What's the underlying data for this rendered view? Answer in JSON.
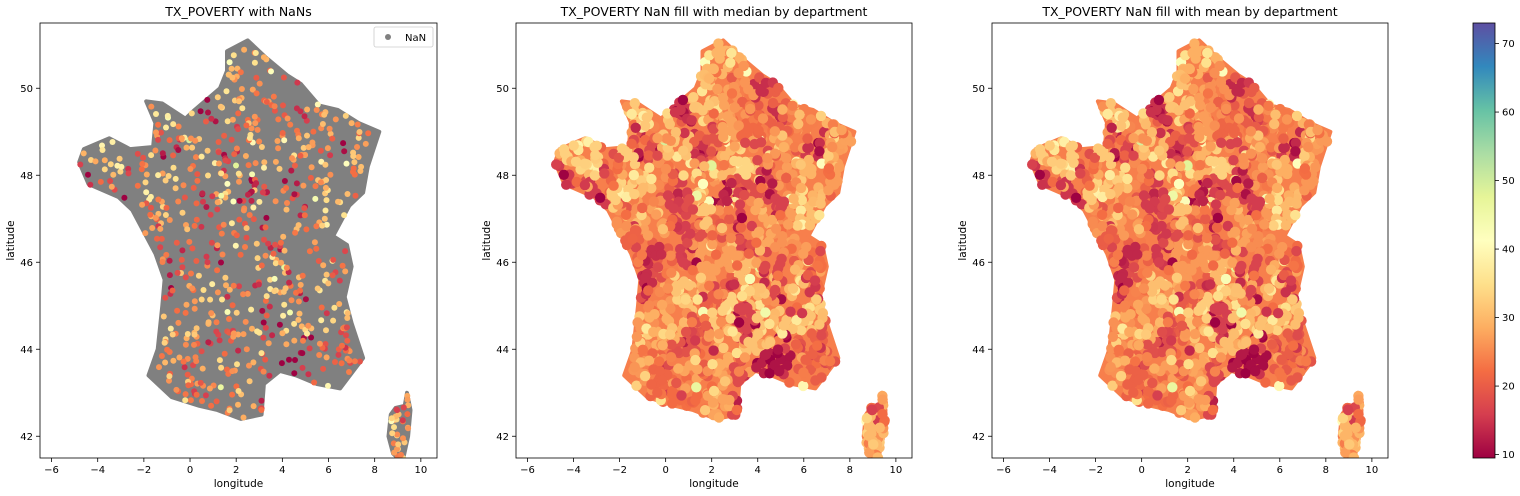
{
  "chart_data": [
    {
      "type": "scatter",
      "title": "TX_POVERTY with NaNs",
      "xlabel": "longitude",
      "ylabel": "latitude",
      "xlim": [
        -6.5,
        10.7
      ],
      "ylim": [
        41.5,
        51.5
      ],
      "xticks": [
        -6,
        -4,
        -2,
        0,
        2,
        4,
        6,
        8,
        10
      ],
      "yticks": [
        42,
        44,
        46,
        48,
        50
      ],
      "nan_color": "#808080",
      "legend": {
        "label": "NaN",
        "location": "top-right"
      },
      "fill": "none"
    },
    {
      "type": "scatter",
      "title": "TX_POVERTY NaN fill with median by department",
      "xlabel": "longitude",
      "ylabel": "latitude",
      "xlim": [
        -6.5,
        10.7
      ],
      "ylim": [
        41.5,
        51.5
      ],
      "xticks": [
        -6,
        -4,
        -2,
        0,
        2,
        4,
        6,
        8,
        10
      ],
      "yticks": [
        42,
        44,
        46,
        48,
        50
      ],
      "fill": "median"
    },
    {
      "type": "scatter",
      "title": "TX_POVERTY NaN fill with mean by department",
      "xlabel": "longitude",
      "ylabel": "latitude",
      "xlim": [
        -6.5,
        10.7
      ],
      "ylim": [
        41.5,
        51.5
      ],
      "xticks": [
        -6,
        -4,
        -2,
        0,
        2,
        4,
        6,
        8,
        10
      ],
      "yticks": [
        42,
        44,
        46,
        48,
        50
      ],
      "fill": "mean"
    }
  ],
  "colorbar": {
    "cmap": "Spectral",
    "range": [
      9.5,
      73
    ],
    "ticks": [
      10,
      20,
      30,
      40,
      50,
      60,
      70
    ]
  },
  "outline_lonlat": [
    [
      2.5,
      51.1
    ],
    [
      3.3,
      50.7
    ],
    [
      4.2,
      50.3
    ],
    [
      4.8,
      50.1
    ],
    [
      5.6,
      49.6
    ],
    [
      6.4,
      49.5
    ],
    [
      7.3,
      49.2
    ],
    [
      8.2,
      49.0
    ],
    [
      7.7,
      48.2
    ],
    [
      7.5,
      47.6
    ],
    [
      6.9,
      47.3
    ],
    [
      6.2,
      46.6
    ],
    [
      6.8,
      46.4
    ],
    [
      7.0,
      45.9
    ],
    [
      6.7,
      45.2
    ],
    [
      7.0,
      44.6
    ],
    [
      7.5,
      43.8
    ],
    [
      6.5,
      43.1
    ],
    [
      5.5,
      43.2
    ],
    [
      4.6,
      43.4
    ],
    [
      3.9,
      43.5
    ],
    [
      3.2,
      43.2
    ],
    [
      3.1,
      42.5
    ],
    [
      2.2,
      42.4
    ],
    [
      1.2,
      42.6
    ],
    [
      0.4,
      42.7
    ],
    [
      -0.8,
      42.9
    ],
    [
      -1.8,
      43.4
    ],
    [
      -1.4,
      44.0
    ],
    [
      -1.2,
      45.0
    ],
    [
      -1.1,
      45.6
    ],
    [
      -1.5,
      46.2
    ],
    [
      -2.1,
      46.8
    ],
    [
      -2.5,
      47.2
    ],
    [
      -3.1,
      47.5
    ],
    [
      -4.4,
      47.8
    ],
    [
      -4.8,
      48.3
    ],
    [
      -4.6,
      48.6
    ],
    [
      -3.5,
      48.85
    ],
    [
      -2.6,
      48.6
    ],
    [
      -1.6,
      48.65
    ],
    [
      -1.5,
      49.2
    ],
    [
      -1.9,
      49.7
    ],
    [
      -1.2,
      49.65
    ],
    [
      -0.2,
      49.3
    ],
    [
      0.2,
      49.5
    ],
    [
      1.3,
      50.0
    ],
    [
      1.6,
      50.4
    ],
    [
      1.6,
      50.85
    ]
  ],
  "corsica_lonlat": [
    [
      9.4,
      43.0
    ],
    [
      9.55,
      42.6
    ],
    [
      9.45,
      42.0
    ],
    [
      9.2,
      41.4
    ],
    [
      8.8,
      41.6
    ],
    [
      8.6,
      42.0
    ],
    [
      8.7,
      42.5
    ],
    [
      8.9,
      42.65
    ],
    [
      9.3,
      42.7
    ]
  ]
}
